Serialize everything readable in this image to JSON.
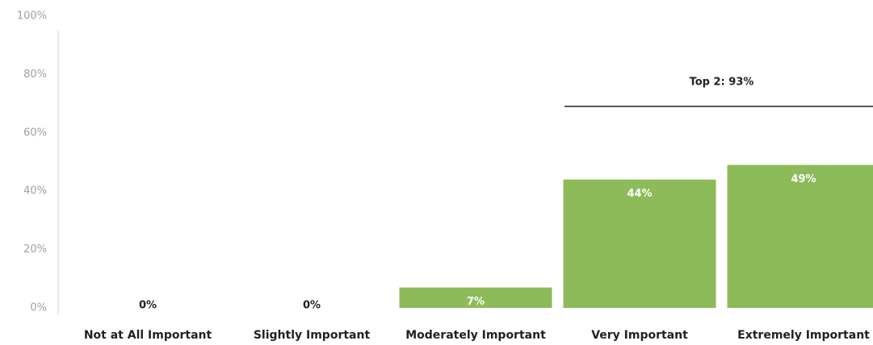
{
  "chart_data": {
    "type": "bar",
    "categories": [
      "Not at All Important",
      "Slightly Important",
      "Moderately Important",
      "Very Important",
      "Extremely Important"
    ],
    "values": [
      0,
      0,
      7,
      44,
      49
    ],
    "value_labels": [
      "0%",
      "0%",
      "7%",
      "44%",
      "49%"
    ],
    "color": "#8dbb59",
    "ylim": [
      0,
      100
    ],
    "yticks": [
      {
        "value": 0,
        "label": "0%"
      },
      {
        "value": 20,
        "label": "20%"
      },
      {
        "value": 40,
        "label": "40%"
      },
      {
        "value": 60,
        "label": "60%"
      },
      {
        "value": 80,
        "label": "80%"
      },
      {
        "value": 100,
        "label": "100%"
      }
    ],
    "annotation": "Top 2: 93%"
  }
}
